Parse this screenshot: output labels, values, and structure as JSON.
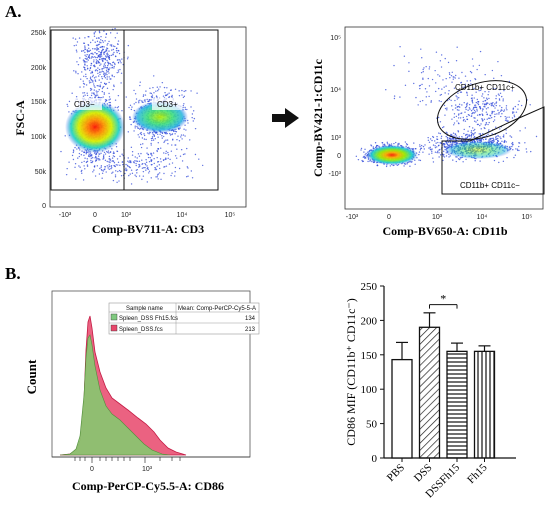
{
  "panel_a": {
    "label": "A.",
    "plot1": {
      "ylabel": "FSC-A",
      "xlabel": "Comp-BV711-A: CD3",
      "yticks": [
        "250k",
        "200k",
        "150k",
        "100k",
        "50k",
        "0"
      ],
      "xticks": [
        "-10³",
        "0",
        "10³",
        "10⁴",
        "10⁵"
      ],
      "gates": [
        "CD3−",
        "CD3+"
      ]
    },
    "plot2": {
      "ylabel": "Comp-BV421-1:CD11c",
      "xlabel": "Comp-BV650-A: CD11b",
      "yticks": [
        "10⁵",
        "10⁴",
        "10³",
        "0",
        "-10³"
      ],
      "xticks": [
        "-10³",
        "0",
        "10³",
        "10⁴",
        "10⁵"
      ],
      "gates": [
        "CD11b+ CD11c+",
        "CD11b+ CD11c−"
      ]
    }
  },
  "panel_b": {
    "label": "B.",
    "histogram": {
      "ylabel": "Count",
      "xlabel": "Comp-PerCP-Cy5.5-A: CD86",
      "xticks": [
        "0",
        "10³"
      ],
      "legend_headers": [
        "Sample name",
        "Mean: Comp-PerCP-Cy5-5-A"
      ],
      "legend_rows": [
        {
          "name": "Spleen_DSS Fh15.fcs",
          "value": "134",
          "color": "#7fc97f"
        },
        {
          "name": "Spleen_DSS.fcs",
          "value": "213",
          "color": "#e8476b"
        }
      ]
    }
  },
  "chart_data": {
    "type": "bar",
    "ylabel": "CD86 MIF  (CD11b⁺ CD11c⁻)",
    "categories": [
      "PBS",
      "DSS",
      "DSSFh15",
      "Fh15"
    ],
    "values": [
      143,
      190,
      155,
      155
    ],
    "errors": [
      25,
      21,
      12,
      8
    ],
    "ylim": [
      0,
      250
    ],
    "yticks": [
      "0",
      "50",
      "100",
      "150",
      "200",
      "250"
    ],
    "significance": {
      "between": [
        "DSS",
        "DSSFh15"
      ],
      "label": "*"
    },
    "fills": [
      "white",
      "diagonal",
      "horizontal",
      "vertical"
    ]
  }
}
